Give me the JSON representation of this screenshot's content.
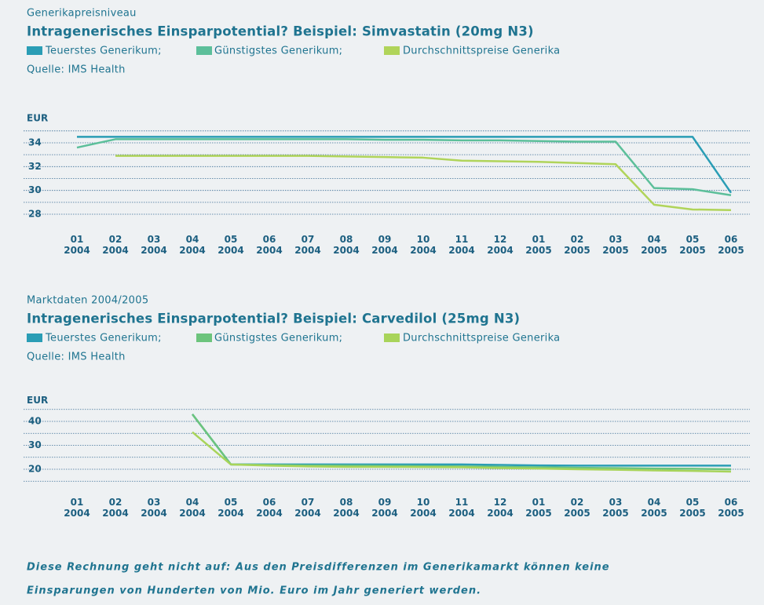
{
  "chart_data": [
    {
      "type": "line",
      "overline": "Generikapreisniveau",
      "title": "Intragenerisches Einsparpotential? Beispiel: Simvastatin (20mg N3)",
      "source": "Quelle: IMS Health",
      "y_label": "EUR",
      "categories": [
        "01 2004",
        "02 2004",
        "03 2004",
        "04 2004",
        "05 2004",
        "06 2004",
        "07 2004",
        "08 2004",
        "09 2004",
        "10 2004",
        "11 2004",
        "12 2004",
        "01 2005",
        "02 2005",
        "03 2005",
        "04 2005",
        "05 2005",
        "06 2005"
      ],
      "series": [
        {
          "name": "Teuerstes Generikum;",
          "color": "#2a9db5",
          "values": [
            34.5,
            34.5,
            34.5,
            34.5,
            34.5,
            34.5,
            34.5,
            34.5,
            34.5,
            34.5,
            34.5,
            34.5,
            34.5,
            34.5,
            34.5,
            34.5,
            34.5,
            29.8
          ]
        },
        {
          "name": "Günstigstes Generikum;",
          "color": "#5cbf9a",
          "values": [
            33.6,
            34.3,
            34.3,
            34.3,
            34.3,
            34.3,
            34.3,
            34.3,
            34.25,
            34.25,
            34.2,
            34.2,
            34.15,
            34.1,
            34.1,
            30.2,
            30.1,
            29.6
          ]
        },
        {
          "name": "Durchschnittspreise Generika",
          "color": "#b0d45a",
          "values": [
            null,
            32.9,
            32.9,
            32.9,
            32.9,
            32.9,
            32.9,
            32.85,
            32.8,
            32.75,
            32.5,
            32.45,
            32.4,
            32.3,
            32.2,
            28.8,
            28.4,
            28.35
          ]
        }
      ],
      "ylim": [
        27,
        35.5
      ],
      "yticks": [
        28,
        30,
        32,
        34
      ],
      "minor_yticks": [
        29,
        31,
        33,
        35
      ],
      "grid": true
    },
    {
      "type": "line",
      "overline": "Marktdaten 2004/2005",
      "title": "Intragenerisches Einsparpotential? Beispiel: Carvedilol (25mg N3)",
      "source": "Quelle: IMS Health",
      "y_label": "EUR",
      "categories": [
        "01 2004",
        "02 2004",
        "03 2004",
        "04 2004",
        "05 2004",
        "06 2004",
        "07 2004",
        "08 2004",
        "09 2004",
        "10 2004",
        "11 2004",
        "12 2004",
        "01 2005",
        "02 2005",
        "03 2005",
        "04 2005",
        "05 2005",
        "06 2005"
      ],
      "series": [
        {
          "name": "Teuerstes Generikum;",
          "color": "#2a9db5",
          "values": [
            null,
            null,
            null,
            43,
            22,
            22,
            22,
            22,
            22,
            22,
            22,
            21.8,
            21.6,
            21.5,
            21.5,
            21.5,
            21.5,
            21.5
          ]
        },
        {
          "name": "Günstigstes Generikum;",
          "color": "#6cc47c",
          "values": [
            null,
            null,
            null,
            43,
            22,
            21.8,
            21.6,
            21.5,
            21.4,
            21.3,
            21.2,
            21,
            20.8,
            20.6,
            20.5,
            20.3,
            20.2,
            20
          ]
        },
        {
          "name": "Durchschnittspreise Generika",
          "color": "#a8d45a",
          "values": [
            null,
            null,
            null,
            35.5,
            22,
            21.5,
            21.2,
            21,
            21,
            20.9,
            20.8,
            20.5,
            20.3,
            20,
            19.8,
            19.5,
            19.3,
            19
          ]
        }
      ],
      "ylim": [
        10,
        46
      ],
      "yticks": [
        20,
        30,
        40
      ],
      "minor_yticks": [
        15,
        25,
        35,
        45
      ],
      "grid": true
    }
  ],
  "footer": [
    "Diese Rechnung geht nicht auf: Aus den Preisdifferenzen im Generikamarkt können keine",
    "Einsparungen von Hunderten von Mio. Euro im Jahr generiert werden."
  ]
}
